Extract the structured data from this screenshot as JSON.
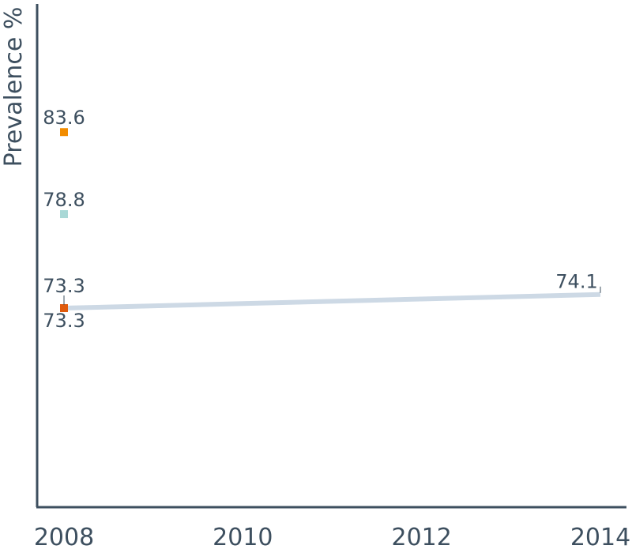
{
  "chart_data": {
    "type": "line",
    "ylabel": "Prevalence %",
    "xlabel": "",
    "x_ticks": [
      "2008",
      "2010",
      "2012",
      "2014"
    ],
    "xlim": [
      2008,
      2014.3
    ],
    "ylim": [
      61.65,
      91.1
    ],
    "grid": false,
    "series": [
      {
        "color": "#cdd9e5",
        "style": "line",
        "points": [
          {
            "x": 2008,
            "y": 73.3,
            "label": "73.3"
          },
          {
            "x": 2014,
            "y": 74.1,
            "label": "74.1"
          }
        ]
      },
      {
        "color": "#f28c00",
        "style": "marker",
        "points": [
          {
            "x": 2008,
            "y": 83.6,
            "label": "83.6"
          }
        ]
      },
      {
        "color": "#a9d8d6",
        "style": "marker",
        "points": [
          {
            "x": 2008,
            "y": 78.8,
            "label": "78.8"
          }
        ]
      },
      {
        "color": "#e05a0c",
        "style": "marker",
        "points": [
          {
            "x": 2008,
            "y": 73.3,
            "label": "73.3"
          }
        ]
      }
    ]
  }
}
